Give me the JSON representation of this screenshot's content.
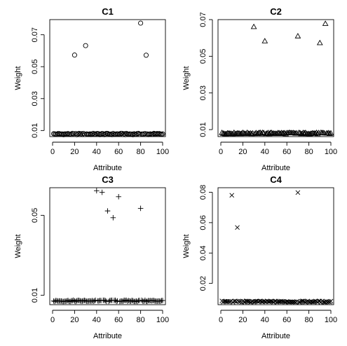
{
  "chart_data": [
    {
      "type": "scatter",
      "title": "C1",
      "xlabel": "Attribute",
      "ylabel": "Weight",
      "marker": "circle",
      "xlim": [
        0,
        100
      ],
      "ylim": [
        0.0062,
        0.0795
      ],
      "xticks": [
        0,
        20,
        40,
        60,
        80,
        100
      ],
      "xtick_labels": [
        "0",
        "20",
        "40",
        "60",
        "80",
        "100"
      ],
      "yticks": [
        0.01,
        0.03,
        0.05,
        0.07
      ],
      "ytick_labels": [
        "0.01",
        "0.03",
        "0.05",
        "0.07"
      ],
      "baseline": {
        "x_from": 1,
        "x_to": 100,
        "y": 0.0078
      },
      "points": [
        {
          "x": 20,
          "y": 0.0573
        },
        {
          "x": 30,
          "y": 0.0632
        },
        {
          "x": 80,
          "y": 0.0773
        },
        {
          "x": 85,
          "y": 0.0572
        }
      ]
    },
    {
      "type": "scatter",
      "title": "C2",
      "xlabel": "Attribute",
      "ylabel": "Weight",
      "marker": "triangle",
      "xlim": [
        0,
        100
      ],
      "ylim": [
        0.0062,
        0.07
      ],
      "xticks": [
        0,
        20,
        40,
        60,
        80,
        100
      ],
      "xtick_labels": [
        "0",
        "20",
        "40",
        "60",
        "80",
        "100"
      ],
      "yticks": [
        0.01,
        0.03,
        0.05,
        0.07
      ],
      "ytick_labels": [
        "0.01",
        "0.03",
        "0.05",
        "0.07"
      ],
      "baseline": {
        "x_from": 1,
        "x_to": 100,
        "y": 0.008
      },
      "points": [
        {
          "x": 30,
          "y": 0.0661
        },
        {
          "x": 40,
          "y": 0.0583
        },
        {
          "x": 70,
          "y": 0.061
        },
        {
          "x": 90,
          "y": 0.0573
        },
        {
          "x": 95,
          "y": 0.0678
        }
      ]
    },
    {
      "type": "scatter",
      "title": "C3",
      "xlabel": "Attribute",
      "ylabel": "Weight",
      "marker": "plus",
      "xlim": [
        0,
        100
      ],
      "ylim": [
        0.0053,
        0.0638
      ],
      "xticks": [
        0,
        20,
        40,
        60,
        80,
        100
      ],
      "xtick_labels": [
        "0",
        "20",
        "40",
        "60",
        "80",
        "100"
      ],
      "yticks": [
        0.01,
        0.05
      ],
      "ytick_labels": [
        "0.01",
        "0.05"
      ],
      "baseline": {
        "x_from": 1,
        "x_to": 100,
        "y": 0.0072
      },
      "points": [
        {
          "x": 40,
          "y": 0.0623
        },
        {
          "x": 45,
          "y": 0.0615
        },
        {
          "x": 50,
          "y": 0.0522
        },
        {
          "x": 55,
          "y": 0.0488
        },
        {
          "x": 60,
          "y": 0.0593
        },
        {
          "x": 80,
          "y": 0.0535
        }
      ]
    },
    {
      "type": "scatter",
      "title": "C4",
      "xlabel": "Attribute",
      "ylabel": "Weight",
      "marker": "cross",
      "xlim": [
        0,
        100
      ],
      "ylim": [
        0.006,
        0.083
      ],
      "xticks": [
        0,
        20,
        40,
        60,
        80,
        100
      ],
      "xtick_labels": [
        "0",
        "20",
        "40",
        "60",
        "80",
        "100"
      ],
      "yticks": [
        0.02,
        0.04,
        0.06,
        0.08
      ],
      "ytick_labels": [
        "0.02",
        "0.04",
        "0.06",
        "0.08"
      ],
      "baseline": {
        "x_from": 1,
        "x_to": 100,
        "y": 0.008
      },
      "points": [
        {
          "x": 10,
          "y": 0.078
        },
        {
          "x": 15,
          "y": 0.0568
        },
        {
          "x": 70,
          "y": 0.0798
        }
      ]
    }
  ]
}
